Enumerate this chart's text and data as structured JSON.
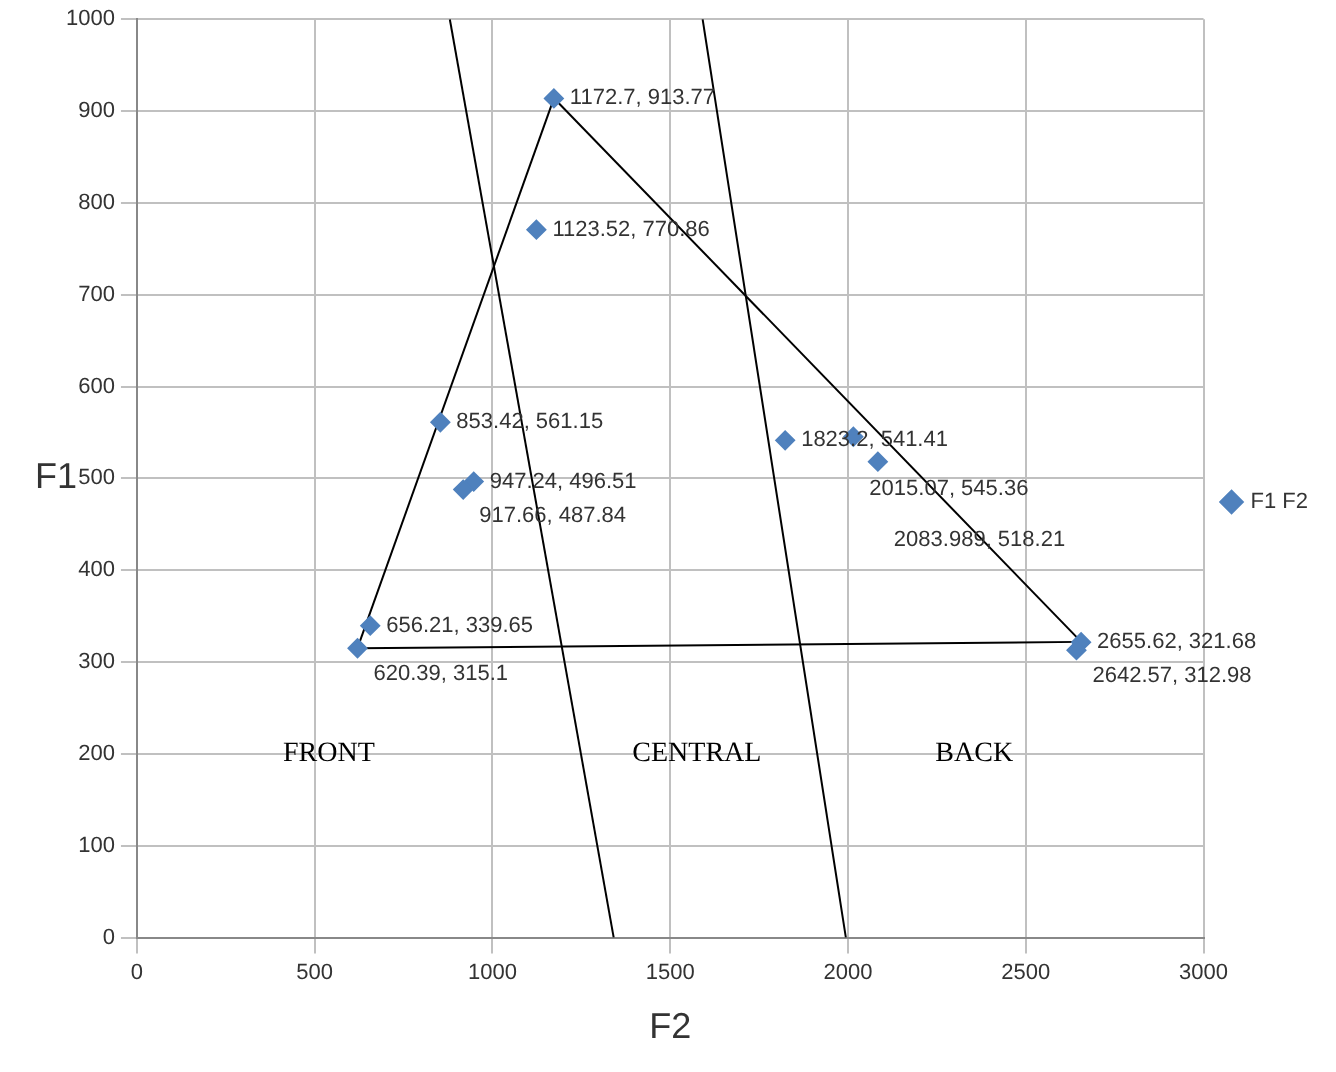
{
  "chart_data": {
    "type": "scatter",
    "xlabel": "F2",
    "ylabel": "F1",
    "xlim": [
      0,
      3000
    ],
    "xticks": [
      0,
      500,
      1000,
      1500,
      2000,
      2500,
      3000
    ],
    "ylim": [
      0,
      1000
    ],
    "yticks": [
      0,
      100,
      200,
      300,
      400,
      500,
      600,
      700,
      800,
      900,
      1000
    ],
    "grid": true,
    "legend": "right",
    "marker": "diamond",
    "series": [
      {
        "name": "F1 F2",
        "type": "scatter",
        "color": "#4f81bd",
        "x": [
          1172.7,
          1123.52,
          853.42,
          947.24,
          917.66,
          1823.2,
          2015.07,
          2083.989,
          656.21,
          620.39,
          2655.62,
          2642.57
        ],
        "values": [
          913.77,
          770.86,
          561.15,
          496.51,
          487.84,
          541.41,
          545.36,
          518.21,
          339.65,
          315.1,
          321.68,
          312.98
        ],
        "value_labels": [
          "1172.7, 913.77",
          "1123.52, 770.86",
          "853.42, 561.15",
          "947.24, 496.51",
          "917.66, 487.84",
          "1823.2, 541.41",
          "2015.07, 545.36",
          "2083.989, 518.21",
          "656.21, 339.65",
          "620.39, 315.1",
          "2655.62, 321.68",
          "2642.57, 312.98"
        ]
      },
      {
        "type": "line",
        "color": "#000000",
        "marker": "none",
        "x": [
          620,
          1173
        ],
        "values": [
          315,
          914
        ]
      },
      {
        "type": "line",
        "color": "#000000",
        "marker": "none",
        "x": [
          1173,
          2656
        ],
        "values": [
          914,
          322
        ]
      },
      {
        "type": "line",
        "color": "#000000",
        "marker": "none",
        "x": [
          620,
          2656
        ],
        "values": [
          315,
          322
        ]
      },
      {
        "type": "line",
        "color": "#000000",
        "marker": "none",
        "x": [
          880,
          1341
        ],
        "values": [
          1000,
          0
        ]
      },
      {
        "type": "line",
        "color": "#000000",
        "marker": "none",
        "x": [
          1591,
          1994
        ],
        "values": [
          1000,
          0
        ]
      }
    ],
    "annotations": [
      "FRONT",
      "CENTRAL",
      "BACK"
    ]
  }
}
